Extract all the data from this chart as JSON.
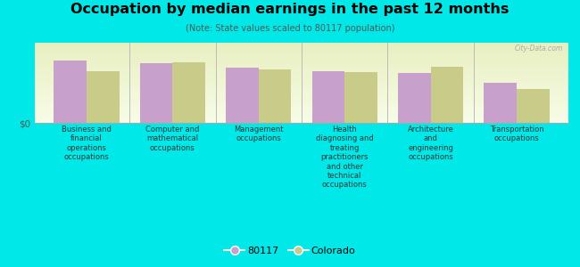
{
  "title": "Occupation by median earnings in the past 12 months",
  "subtitle": "(Note: State values scaled to 80117 population)",
  "categories": [
    "Business and\nfinancial\noperations\noccupations",
    "Computer and\nmathematical\noccupations",
    "Management\noccupations",
    "Health\ndiagnosing and\ntreating\npractitioners\nand other\ntechnical\noccupations",
    "Architecture\nand\nengineering\noccupations",
    "Transportation\noccupations"
  ],
  "values_80117": [
    0.82,
    0.78,
    0.72,
    0.68,
    0.65,
    0.52
  ],
  "values_colorado": [
    0.68,
    0.79,
    0.7,
    0.67,
    0.74,
    0.44
  ],
  "color_80117": "#c8a0cc",
  "color_colorado": "#c8cc88",
  "background_outer": "#00e8e8",
  "background_plot_top": "#e8f0c0",
  "background_plot_bottom": "#f8fce8",
  "ylabel": "$0",
  "legend_label_1": "80117",
  "legend_label_2": "Colorado",
  "bar_width": 0.38,
  "watermark": "City-Data.com"
}
